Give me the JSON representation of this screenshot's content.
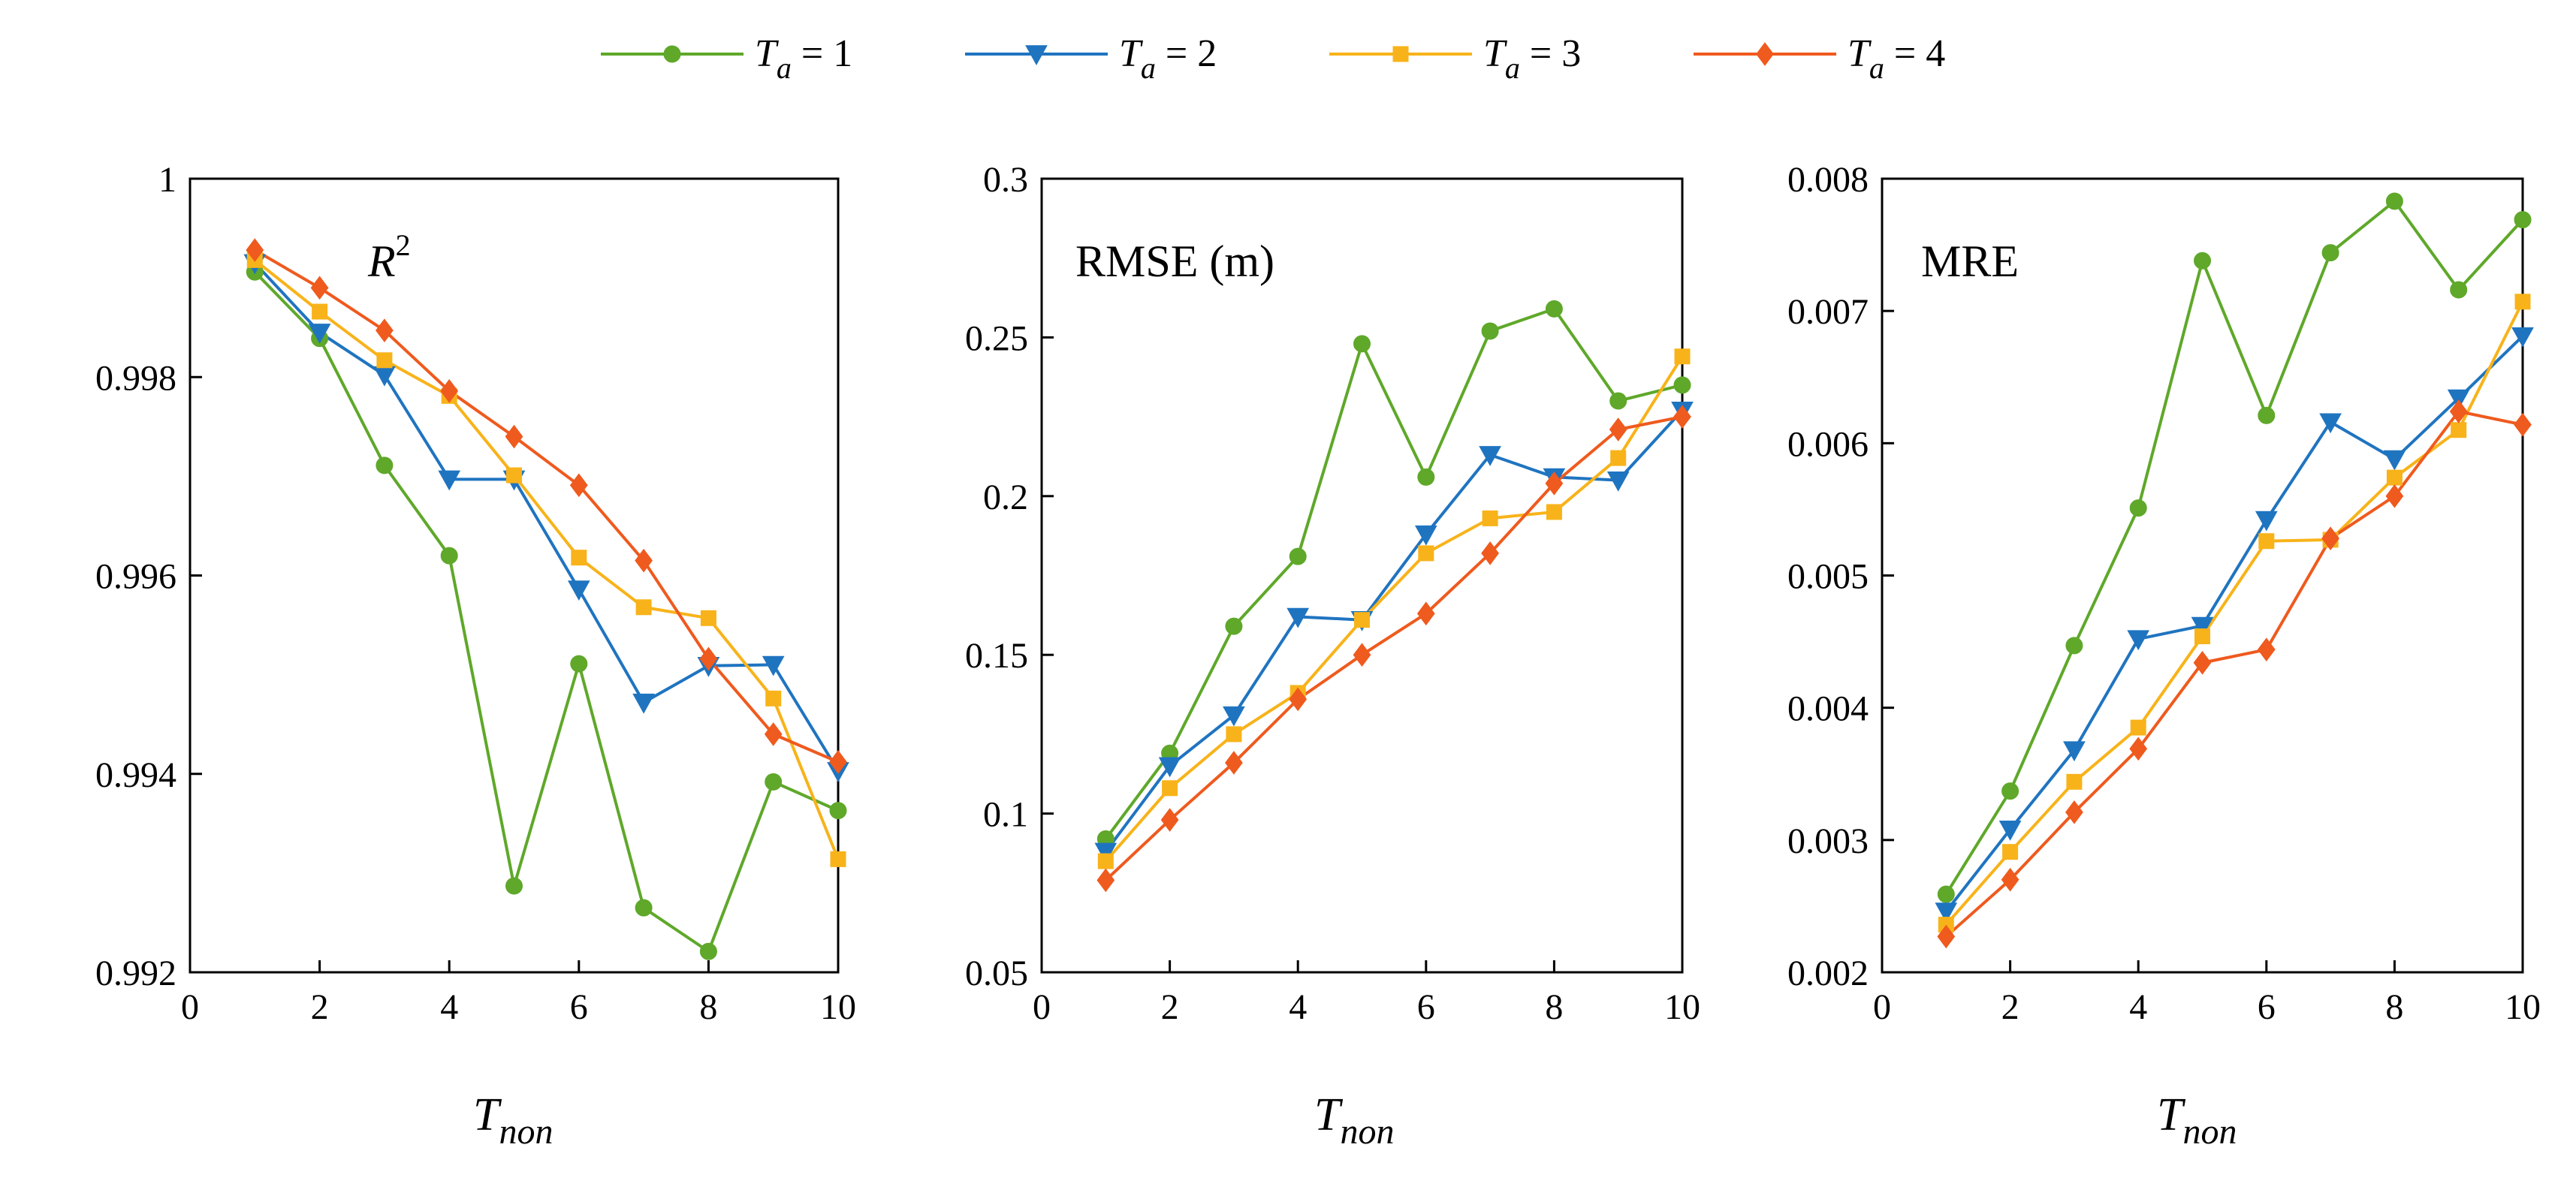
{
  "chart_data": [
    {
      "type": "line",
      "title": "R^2",
      "title_main": "R",
      "title_sup": "2",
      "xlabel": "T",
      "xlabel_sub": "non",
      "xlim": [
        0,
        10
      ],
      "ylim": [
        0.992,
        1
      ],
      "xticks": [
        "0",
        "2",
        "4",
        "6",
        "8",
        "10"
      ],
      "yticks": [
        "0.992",
        "0.994",
        "0.996",
        "0.998",
        "1"
      ],
      "x": [
        1,
        2,
        3,
        4,
        5,
        6,
        7,
        8,
        9,
        10
      ],
      "series": [
        {
          "name": "Ta = 1",
          "values": [
            0.99906,
            0.99839,
            0.99711,
            0.9962,
            0.99287,
            0.99511,
            0.99265,
            0.99221,
            0.99392,
            0.99363
          ]
        },
        {
          "name": "Ta = 2",
          "values": [
            0.99915,
            0.99845,
            0.99802,
            0.99697,
            0.99697,
            0.99586,
            0.99472,
            0.99509,
            0.9951,
            0.99403
          ]
        },
        {
          "name": "Ta = 3",
          "values": [
            0.99918,
            0.99866,
            0.99817,
            0.99781,
            0.99701,
            0.99618,
            0.99568,
            0.99557,
            0.99476,
            0.99314
          ]
        },
        {
          "name": "Ta = 4",
          "values": [
            0.99928,
            0.9989,
            0.99847,
            0.99786,
            0.9974,
            0.99691,
            0.99615,
            0.99516,
            0.9944,
            0.99412
          ]
        }
      ]
    },
    {
      "type": "line",
      "title": "RMSE (m)",
      "xlabel": "T",
      "xlabel_sub": "non",
      "xlim": [
        0,
        10
      ],
      "ylim": [
        0.05,
        0.3
      ],
      "xticks": [
        "0",
        "2",
        "4",
        "6",
        "8",
        "10"
      ],
      "yticks": [
        "0.05",
        "0.1",
        "0.15",
        "0.2",
        "0.25",
        "0.3"
      ],
      "x": [
        1,
        2,
        3,
        4,
        5,
        6,
        7,
        8,
        9,
        10
      ],
      "series": [
        {
          "name": "Ta = 1",
          "values": [
            0.092,
            0.119,
            0.159,
            0.181,
            0.248,
            0.206,
            0.252,
            0.259,
            0.23,
            0.235
          ]
        },
        {
          "name": "Ta = 2",
          "values": [
            0.088,
            0.115,
            0.131,
            0.162,
            0.161,
            0.188,
            0.213,
            0.206,
            0.205,
            0.227
          ]
        },
        {
          "name": "Ta = 3",
          "values": [
            0.085,
            0.108,
            0.125,
            0.138,
            0.161,
            0.182,
            0.193,
            0.195,
            0.212,
            0.244
          ]
        },
        {
          "name": "Ta = 4",
          "values": [
            0.079,
            0.098,
            0.116,
            0.136,
            0.15,
            0.163,
            0.182,
            0.204,
            0.221,
            0.225
          ]
        }
      ]
    },
    {
      "type": "line",
      "title": "MRE",
      "xlabel": "T",
      "xlabel_sub": "non",
      "xlim": [
        0,
        10
      ],
      "ylim": [
        0.002,
        0.008
      ],
      "xticks": [
        "0",
        "2",
        "4",
        "6",
        "8",
        "10"
      ],
      "yticks": [
        "0.002",
        "0.003",
        "0.004",
        "0.005",
        "0.006",
        "0.007",
        "0.008"
      ],
      "x": [
        1,
        2,
        3,
        4,
        5,
        6,
        7,
        8,
        9,
        10
      ],
      "series": [
        {
          "name": "Ta = 1",
          "values": [
            0.00259,
            0.00337,
            0.00447,
            0.00551,
            0.00738,
            0.00621,
            0.00744,
            0.00783,
            0.00716,
            0.00769
          ]
        },
        {
          "name": "Ta = 2",
          "values": [
            0.00246,
            0.00308,
            0.00368,
            0.00452,
            0.00462,
            0.00542,
            0.00616,
            0.00588,
            0.00634,
            0.00681
          ]
        },
        {
          "name": "Ta = 3",
          "values": [
            0.00236,
            0.00291,
            0.00344,
            0.00385,
            0.00454,
            0.00526,
            0.00527,
            0.00574,
            0.0061,
            0.00707
          ]
        },
        {
          "name": "Ta = 4",
          "values": [
            0.00227,
            0.0027,
            0.00321,
            0.00369,
            0.00434,
            0.00444,
            0.00528,
            0.0056,
            0.00624,
            0.00614
          ]
        }
      ]
    }
  ],
  "legend": [
    {
      "var": "T",
      "sub": "a",
      "text": " = 1",
      "color": "#5fa82a",
      "marker": "circle"
    },
    {
      "var": "T",
      "sub": "a",
      "text": " = 2",
      "color": "#1f74c0",
      "marker": "triangle-down"
    },
    {
      "var": "T",
      "sub": "a",
      "text": " = 3",
      "color": "#f8b31a",
      "marker": "square"
    },
    {
      "var": "T",
      "sub": "a",
      "text": " = 4",
      "color": "#ef5a1e",
      "marker": "diamond"
    }
  ]
}
